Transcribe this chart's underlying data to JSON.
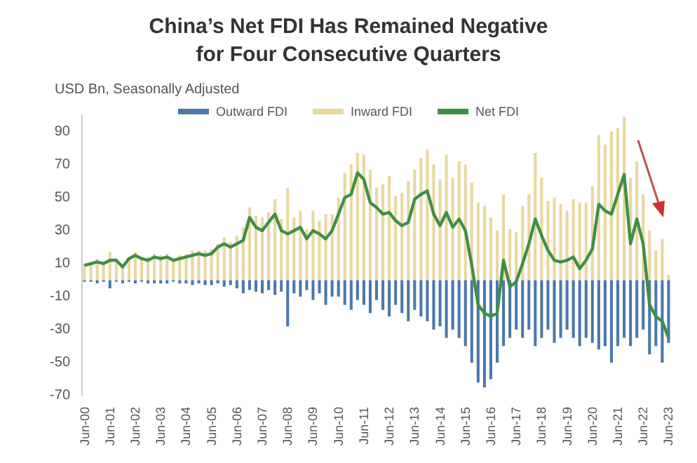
{
  "chart_data": {
    "type": "bar",
    "title": "China’s Net FDI Has Remained Negative\nfor Four Consecutive Quarters",
    "ylabel": "USD Bn, Seasonally Adjusted",
    "categories": [
      "Jun-00",
      null,
      null,
      null,
      "Jun-01",
      null,
      null,
      null,
      "Jun-02",
      null,
      null,
      null,
      "Jun-03",
      null,
      null,
      null,
      "Jun-04",
      null,
      null,
      null,
      "Jun-05",
      null,
      null,
      null,
      "Jun-06",
      null,
      null,
      null,
      "Jun-07",
      null,
      null,
      null,
      "Jun-08",
      null,
      null,
      null,
      "Jun-09",
      null,
      null,
      null,
      "Jun-10",
      null,
      null,
      null,
      "Jun-11",
      null,
      null,
      null,
      "Jun-12",
      null,
      null,
      null,
      "Jun-13",
      null,
      null,
      null,
      "Jun-14",
      null,
      null,
      null,
      "Jun-15",
      null,
      null,
      null,
      "Jun-16",
      null,
      null,
      null,
      "Jun-17",
      null,
      null,
      null,
      "Jun-18",
      null,
      null,
      null,
      "Jun-19",
      null,
      null,
      null,
      "Jun-20",
      null,
      null,
      null,
      "Jun-21",
      null,
      null,
      null,
      "Jun-22",
      null,
      null,
      null,
      "Jun-23"
    ],
    "stacked": true,
    "series": [
      {
        "name": "Outward FDI",
        "color": "#4a78a8",
        "values": [
          -1,
          -1,
          -2,
          -1,
          -5,
          -1,
          -2,
          -1,
          -2,
          -1,
          -2,
          -2,
          -2,
          -2,
          -1,
          -2,
          -2,
          -3,
          -2,
          -3,
          -3,
          -2,
          -4,
          -3,
          -5,
          -8,
          -6,
          -7,
          -8,
          -6,
          -9,
          -7,
          -28,
          -8,
          -10,
          -6,
          -12,
          -8,
          -15,
          -10,
          -10,
          -15,
          -18,
          -12,
          -15,
          -20,
          -12,
          -18,
          -22,
          -15,
          -20,
          -25,
          -18,
          -22,
          -25,
          -30,
          -28,
          -35,
          -30,
          -35,
          -40,
          -50,
          -62,
          -65,
          -60,
          -50,
          -40,
          -35,
          -30,
          -35,
          -30,
          -40,
          -35,
          -30,
          -38,
          -35,
          -30,
          -35,
          -40,
          -35,
          -38,
          -42,
          -40,
          -50,
          -40,
          -35,
          -40,
          -35,
          -30,
          -45,
          -40,
          -50,
          -38
        ]
      },
      {
        "name": "Inward FDI",
        "color": "#e8d8a0",
        "values": [
          10,
          11,
          13,
          11,
          17,
          13,
          10,
          14,
          17,
          14,
          14,
          16,
          15,
          16,
          13,
          15,
          16,
          18,
          18,
          18,
          19,
          22,
          26,
          23,
          27,
          32,
          44,
          39,
          38,
          41,
          49,
          37,
          56,
          38,
          42,
          31,
          42,
          36,
          40,
          40,
          50,
          65,
          70,
          77,
          76,
          67,
          56,
          58,
          63,
          51,
          53,
          60,
          67,
          74,
          79,
          70,
          61,
          76,
          62,
          72,
          70,
          59,
          47,
          45,
          38,
          30,
          52,
          31,
          29,
          45,
          52,
          77,
          62,
          48,
          50,
          46,
          42,
          49,
          47,
          47,
          57,
          88,
          82,
          90,
          92,
          99,
          62,
          72,
          52,
          30,
          18,
          25,
          3
        ]
      },
      {
        "name": "Net FDI",
        "type": "line",
        "color": "#3f8f45",
        "values": [
          9,
          10,
          11,
          10,
          12,
          12,
          8,
          13,
          15,
          13,
          12,
          14,
          13,
          14,
          12,
          13,
          14,
          15,
          16,
          15,
          16,
          20,
          22,
          20,
          22,
          24,
          38,
          32,
          30,
          35,
          40,
          30,
          28,
          30,
          32,
          25,
          30,
          28,
          25,
          30,
          40,
          50,
          52,
          65,
          61,
          47,
          44,
          40,
          41,
          36,
          33,
          35,
          49,
          52,
          54,
          40,
          33,
          41,
          32,
          37,
          30,
          9,
          -15,
          -20,
          -22,
          -20,
          12,
          -4,
          -1,
          10,
          22,
          37,
          27,
          18,
          12,
          11,
          12,
          14,
          7,
          12,
          19,
          46,
          42,
          40,
          52,
          64,
          22,
          37,
          22,
          -15,
          -22,
          -25,
          -35
        ]
      }
    ],
    "ylim": [
      -70,
      100
    ],
    "yticks": [
      90,
      70,
      50,
      30,
      10,
      -10,
      -30,
      -50,
      -70
    ],
    "legend": "top",
    "marker": "none"
  }
}
